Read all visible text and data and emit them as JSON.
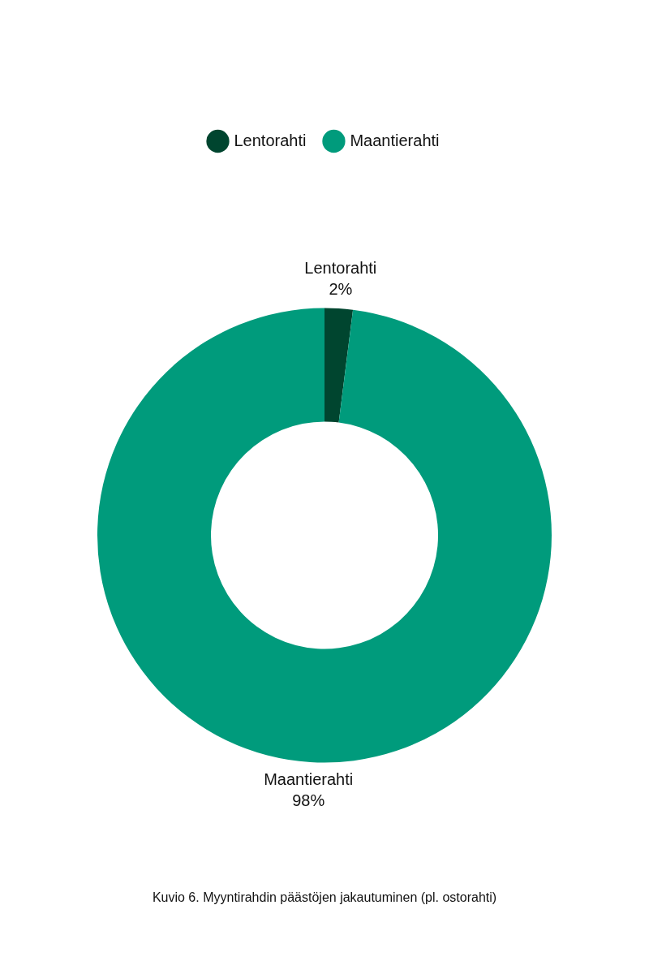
{
  "chart_data": {
    "type": "donut",
    "categories": [
      "Lentorahti",
      "Maantierahti"
    ],
    "values": [
      2,
      98
    ],
    "value_labels": [
      "2%",
      "98%"
    ],
    "colors": [
      "#00452f",
      "#009b7c"
    ],
    "legend": "top",
    "annotations": [
      "Kuvio 6. Myyntirahdin päästöjen jakautuminen (pl. ostorahti)"
    ]
  }
}
